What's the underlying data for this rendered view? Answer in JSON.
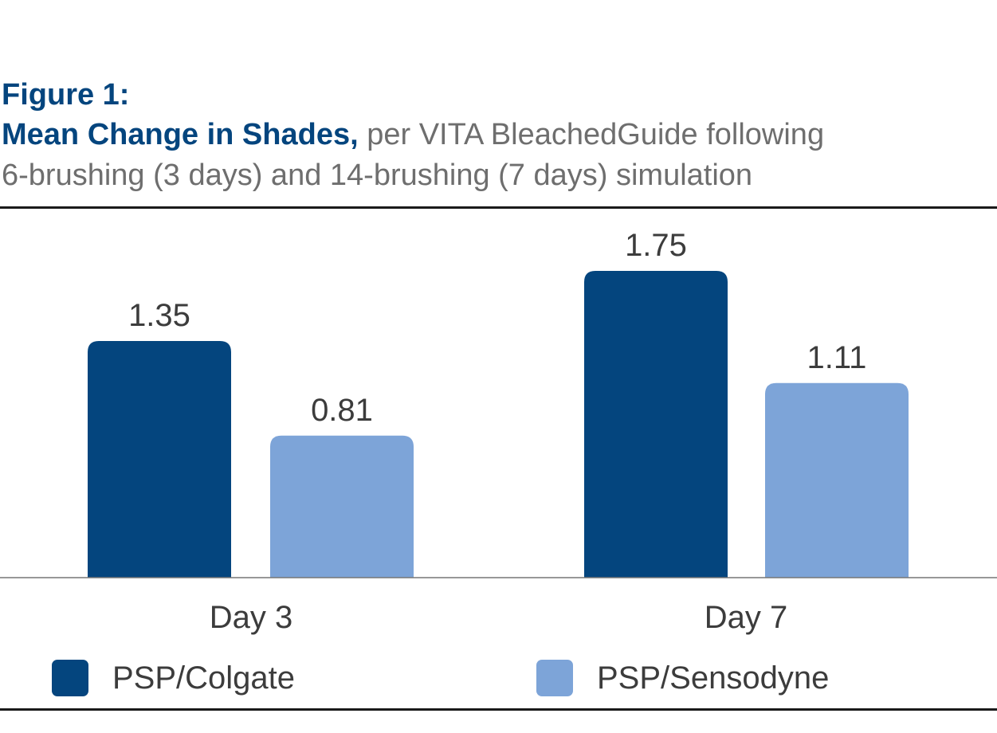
{
  "figure": {
    "label": "Figure 1:",
    "subtitle_bold": "Mean Change in Shades,",
    "subtitle_rest": " per VITA BleachedGuide following",
    "subtitle_line2": "6-brushing (3 days) and 14-brushing (7 days) simulation"
  },
  "colors": {
    "colgate": "#04457e",
    "sensodyne": "#7da4d8"
  },
  "chart_data": {
    "type": "bar",
    "title": "Mean Change in Shades, per VITA BleachedGuide following 6-brushing (3 days) and 14-brushing (7 days) simulation",
    "categories": [
      "Day 3",
      "Day 7"
    ],
    "series": [
      {
        "name": "PSP/Colgate",
        "values": [
          1.35,
          1.75
        ],
        "labels": [
          "1.35",
          "1.75"
        ],
        "color": "#04457e"
      },
      {
        "name": "PSP/Sensodyne",
        "values": [
          0.81,
          1.11
        ],
        "labels": [
          "0.81",
          "1.11"
        ],
        "color": "#7da4d8"
      }
    ],
    "ylim": [
      0,
      2.0
    ],
    "grid": false,
    "legend": "bottom"
  }
}
